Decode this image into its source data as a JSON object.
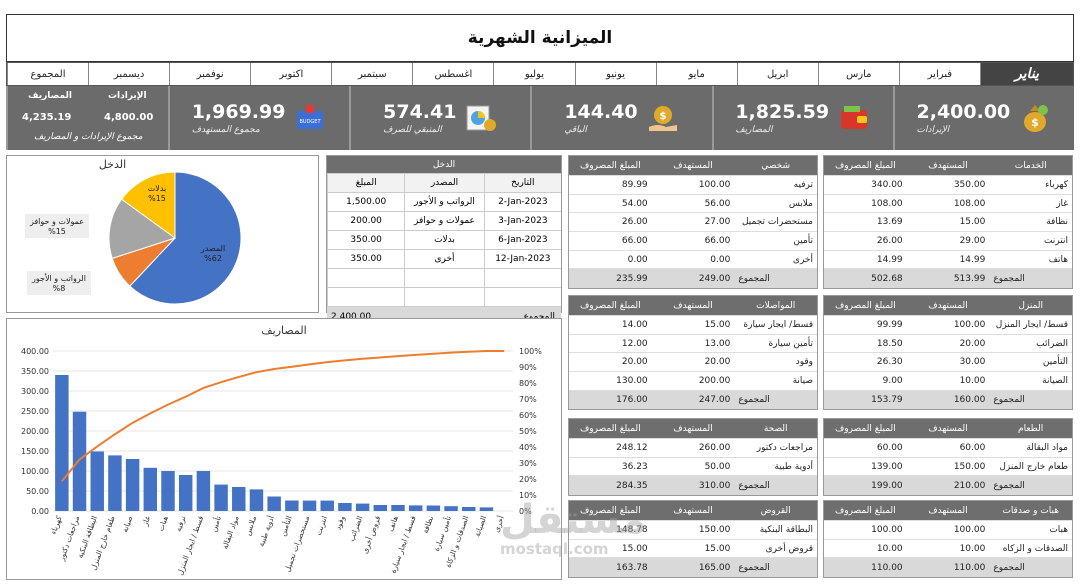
{
  "title": "الميزانية الشهرية",
  "months": [
    {
      "label": "يناير",
      "active": true
    },
    {
      "label": "فبراير"
    },
    {
      "label": "مارس"
    },
    {
      "label": "ابريل"
    },
    {
      "label": "مايو"
    },
    {
      "label": "يونيو"
    },
    {
      "label": "يوليو"
    },
    {
      "label": "اغسطس"
    },
    {
      "label": "سبتمبر"
    },
    {
      "label": "اكتوبر"
    },
    {
      "label": "نوفمبر"
    },
    {
      "label": "ديسمبر"
    },
    {
      "label": "المجموع"
    }
  ],
  "kpis": [
    {
      "value": "2,400.00",
      "label": "الإيرادات",
      "icon": "money-bag-icon"
    },
    {
      "value": "1,825.59",
      "label": "المصاريف",
      "icon": "wallet-icon"
    },
    {
      "value": "144.40",
      "label": "الباقي",
      "icon": "money-hand-icon"
    },
    {
      "value": "574.41",
      "label": "المتبقي للصرف",
      "icon": "calculator-chart-icon"
    },
    {
      "value": "1,969.99",
      "label": "مجموع المستهدف",
      "icon": "budget-icon"
    }
  ],
  "summary": {
    "rev_label": "الإيرادات",
    "exp_label": "المصاريف",
    "rev_value": "4,800.00",
    "exp_value": "4,235.19",
    "caption": "مجموع الإيرادات و المصاريف"
  },
  "tables": {
    "services": {
      "h": [
        "الخدمات",
        "المستهدف",
        "المبلغ المصروف"
      ],
      "rows": [
        [
          "كهرباء",
          "350.00",
          "340.00"
        ],
        [
          "غاز",
          "108.00",
          "108.00"
        ],
        [
          "نظافة",
          "15.00",
          "13.69"
        ],
        [
          "انترنت",
          "29.00",
          "26.00"
        ],
        [
          "هاتف",
          "14.99",
          "14.99"
        ]
      ],
      "total": [
        "المجموع",
        "513.99",
        "502.68"
      ]
    },
    "personal": {
      "h": [
        "شخصي",
        "المستهدف",
        "المبلغ المصروف"
      ],
      "rows": [
        [
          "ترفيه",
          "100.00",
          "89.99"
        ],
        [
          "ملابس",
          "56.00",
          "54.00"
        ],
        [
          "مستحضرات تجميل",
          "27.00",
          "26.00"
        ],
        [
          "تأمين",
          "66.00",
          "66.00"
        ],
        [
          "أخرى",
          "0.00",
          "0.00"
        ]
      ],
      "total": [
        "المجموع",
        "249.00",
        "235.99"
      ]
    },
    "home": {
      "h": [
        "المنزل",
        "المستهدف",
        "المبلغ المصروف"
      ],
      "rows": [
        [
          "قسط/ ايجار المنزل",
          "100.00",
          "99.99"
        ],
        [
          "الضرائب",
          "20.00",
          "18.50"
        ],
        [
          "التأمين",
          "30.00",
          "26.30"
        ],
        [
          "الصيانة",
          "10.00",
          "9.00"
        ]
      ],
      "total": [
        "المجموع",
        "160.00",
        "153.79"
      ]
    },
    "transport": {
      "h": [
        "المواصلات",
        "المستهدف",
        "المبلغ المصروف"
      ],
      "rows": [
        [
          "قسط/ ايجار سيارة",
          "15.00",
          "14.00"
        ],
        [
          "تأمين سيارة",
          "13.00",
          "12.00"
        ],
        [
          "وقود",
          "20.00",
          "20.00"
        ],
        [
          "صيانة",
          "200.00",
          "130.00"
        ]
      ],
      "total": [
        "المجموع",
        "247.00",
        "176.00"
      ]
    },
    "food": {
      "h": [
        "الطعام",
        "المستهدف",
        "المبلغ المصروف"
      ],
      "rows": [
        [
          "مواد البقالة",
          "60.00",
          "60.00"
        ],
        [
          "طعام خارج المنزل",
          "150.00",
          "139.00"
        ]
      ],
      "total": [
        "المجموع",
        "210.00",
        "199.00"
      ]
    },
    "health": {
      "h": [
        "الصحة",
        "المستهدف",
        "المبلغ المصروف"
      ],
      "rows": [
        [
          "مراجعات دكتور",
          "260.00",
          "248.12"
        ],
        [
          "أدوية طبية",
          "50.00",
          "36.23"
        ]
      ],
      "total": [
        "المجموع",
        "310.00",
        "284.35"
      ]
    },
    "gifts": {
      "h": [
        "هبات و صدقات",
        "المستهدف",
        "المبلغ المصروف"
      ],
      "rows": [
        [
          "هبات",
          "100.00",
          "100.00"
        ],
        [
          "الصدقات و الزكاه",
          "10.00",
          "10.00"
        ]
      ],
      "total": [
        "المجموع",
        "110.00",
        "110.00"
      ]
    },
    "loans": {
      "h": [
        "القروض",
        "المستهدف",
        "المبلغ المصروف"
      ],
      "rows": [
        [
          "البطاقة البنكية",
          "150.00",
          "148.78"
        ],
        [
          "قروض أخرى",
          "15.00",
          "15.00"
        ]
      ],
      "total": [
        "المجموع",
        "165.00",
        "163.78"
      ]
    }
  },
  "income": {
    "title": "الدخل",
    "h": [
      "التاريخ",
      "المصدر",
      "المبلغ"
    ],
    "rows": [
      [
        "2-Jan-2023",
        "الرواتب و الأجور",
        "1,500.00"
      ],
      [
        "3-Jan-2023",
        "عمولات و حوافز",
        "200.00"
      ],
      [
        "6-Jan-2023",
        "بدلات",
        "350.00"
      ],
      [
        "12-Jan-2023",
        "أخرى",
        "350.00"
      ],
      [
        "",
        "",
        ""
      ],
      [
        "",
        "",
        ""
      ]
    ],
    "total_label": "المجموع",
    "total": "2,400.00"
  },
  "watermark": {
    "big": "مستقل",
    "small": "mostaql.com"
  },
  "chart_data": [
    {
      "type": "pie",
      "title": "الدخل",
      "labels": [
        "المصدر",
        "الرواتب و الأجور",
        "عمولات و حوافز",
        "بدلات"
      ],
      "values": [
        62,
        8,
        15,
        15
      ],
      "data_labels": [
        "%62",
        "%8",
        "%15",
        "%15"
      ],
      "colors": [
        "#4472c4",
        "#ed7d31",
        "#a5a5a5",
        "#ffc000"
      ]
    },
    {
      "type": "bar",
      "title": "المصاريف",
      "categories": [
        "كهرباء",
        "مراجعات دكتور",
        "البطاقة البنكية",
        "طعام خارج المنزل",
        "صيانة",
        "غاز",
        "هبات",
        "ترفيه",
        "قسط / ايجار المنزل",
        "تأمين",
        "مواد البقالة",
        "ملابس",
        "أدوية طبية",
        "التأمين",
        "مستحضرات تجميل",
        "انترنت",
        "وقود",
        "الضرائب",
        "قروض أخرى",
        "هاتف",
        "قسط / ايجار سيارة",
        "نظافة",
        "تأمين سيارة",
        "الصدقات و الزكاة",
        "الصيانة",
        "أخرى"
      ],
      "values": [
        340,
        248.12,
        148.78,
        139,
        130,
        108,
        100,
        89.99,
        99.99,
        66,
        60,
        54,
        36.23,
        26.3,
        26,
        26,
        20,
        18.5,
        15,
        14.99,
        14,
        13.69,
        12,
        10,
        9,
        0
      ],
      "ylim": [
        0,
        400
      ],
      "yticks": [
        "0.00",
        "50.00",
        "100.00",
        "150.00",
        "200.00",
        "250.00",
        "300.00",
        "350.00",
        "400.00"
      ],
      "y2ticks": [
        "0%",
        "10%",
        "20%",
        "30%",
        "40%",
        "50%",
        "60%",
        "70%",
        "80%",
        "90%",
        "100%"
      ],
      "cumulative": true,
      "bar_color": "#4472c4",
      "line_color": "#ed7d31"
    }
  ]
}
